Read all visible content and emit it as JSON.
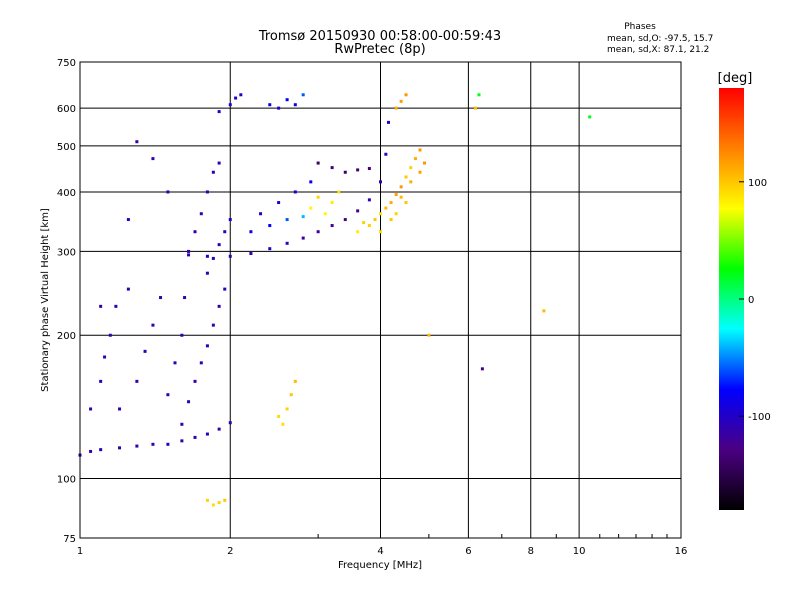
{
  "chart_data": {
    "type": "scatter",
    "title_line1": "Tromsø 20150930 00:58:00-00:59:43",
    "title_line2": "RwPretec (8p)",
    "stats": {
      "heading": "Phases",
      "line_o": "mean, sd,O: -97.5, 15.7",
      "line_x": "mean, sd,X: 87.1, 21.2"
    },
    "xlabel": "Frequency [MHz]",
    "ylabel": "Stationary phase Virtual Height [km]",
    "x_scale": "log",
    "y_scale": "log",
    "xlim": [
      1,
      16
    ],
    "ylim": [
      75,
      750
    ],
    "x_ticks": [
      1,
      2,
      4,
      6,
      8,
      10,
      16
    ],
    "y_ticks": [
      75,
      100,
      200,
      300,
      400,
      500,
      600,
      750
    ],
    "grid": true,
    "colorbar": {
      "label": "[deg]",
      "range": [
        -180,
        180
      ],
      "ticks": [
        100,
        0,
        -100
      ],
      "colormap": [
        "#000000",
        "#4b0082",
        "#0000ff",
        "#00ffff",
        "#00ff00",
        "#ffff00",
        "#ff8000",
        "#ff0000"
      ]
    },
    "series": [
      {
        "points": [
          [
            1.0,
            112
          ],
          [
            1.05,
            114
          ],
          [
            1.1,
            115
          ],
          [
            1.2,
            116
          ],
          [
            1.3,
            117
          ],
          [
            1.4,
            118
          ],
          [
            1.5,
            118
          ],
          [
            1.6,
            120
          ],
          [
            1.7,
            122
          ],
          [
            1.8,
            124
          ],
          [
            1.9,
            127
          ],
          [
            2.0,
            131
          ],
          [
            1.05,
            140
          ],
          [
            1.1,
            160
          ],
          [
            1.12,
            180
          ],
          [
            1.15,
            200
          ],
          [
            1.18,
            230
          ],
          [
            1.25,
            250
          ],
          [
            1.2,
            140
          ],
          [
            1.3,
            160
          ],
          [
            1.35,
            185
          ],
          [
            1.4,
            210
          ],
          [
            1.45,
            240
          ],
          [
            1.5,
            150
          ],
          [
            1.55,
            175
          ],
          [
            1.6,
            200
          ],
          [
            1.62,
            240
          ],
          [
            1.65,
            300
          ],
          [
            1.7,
            330
          ],
          [
            1.75,
            360
          ],
          [
            1.8,
            400
          ],
          [
            1.85,
            440
          ],
          [
            1.9,
            460
          ],
          [
            1.6,
            130
          ],
          [
            1.65,
            145
          ],
          [
            1.7,
            160
          ],
          [
            1.75,
            175
          ],
          [
            1.8,
            190
          ],
          [
            1.85,
            210
          ],
          [
            1.9,
            230
          ],
          [
            1.95,
            250
          ],
          [
            1.8,
            270
          ],
          [
            1.85,
            290
          ],
          [
            1.9,
            310
          ],
          [
            1.95,
            330
          ],
          [
            2.0,
            350
          ],
          [
            1.9,
            590
          ],
          [
            2.0,
            610
          ],
          [
            2.05,
            630
          ],
          [
            2.1,
            640
          ],
          [
            1.65,
            295
          ],
          [
            1.8,
            293
          ],
          [
            2.0,
            293
          ],
          [
            2.2,
            297
          ],
          [
            2.4,
            304
          ],
          [
            2.6,
            312
          ],
          [
            2.8,
            320
          ],
          [
            3.0,
            330
          ],
          [
            3.2,
            340
          ],
          [
            3.4,
            350
          ],
          [
            3.6,
            365
          ],
          [
            3.8,
            385
          ],
          [
            4.0,
            420
          ],
          [
            4.1,
            480
          ],
          [
            4.15,
            560
          ],
          [
            2.2,
            330
          ],
          [
            2.4,
            340
          ],
          [
            2.6,
            350
          ],
          [
            2.8,
            355
          ],
          [
            2.3,
            360
          ],
          [
            2.5,
            380
          ],
          [
            2.7,
            400
          ],
          [
            2.9,
            420
          ],
          [
            3.2,
            450
          ],
          [
            3.4,
            440
          ],
          [
            3.6,
            445
          ],
          [
            3.8,
            448
          ],
          [
            3.0,
            460
          ],
          [
            2.4,
            610
          ],
          [
            2.6,
            625
          ],
          [
            2.8,
            640
          ],
          [
            2.5,
            600
          ],
          [
            2.7,
            610
          ],
          [
            1.4,
            470
          ],
          [
            1.5,
            400
          ],
          [
            1.3,
            510
          ],
          [
            1.25,
            350
          ],
          [
            1.1,
            230
          ],
          [
            6.4,
            170
          ]
        ],
        "phases_deg": [
          -110,
          -110,
          -105,
          -110,
          -110,
          -110,
          -105,
          -110,
          -110,
          -105,
          -110,
          -110,
          -110,
          -105,
          -110,
          -110,
          -105,
          -110,
          -110,
          -110,
          -105,
          -110,
          -110,
          -110,
          -105,
          -110,
          -110,
          -105,
          -110,
          -110,
          -105,
          -110,
          -110,
          -110,
          -105,
          -110,
          -110,
          -105,
          -110,
          -110,
          -105,
          -110,
          -105,
          -110,
          -110,
          -105,
          -100,
          -105,
          -100,
          -100,
          -110,
          -105,
          -110,
          -110,
          -105,
          -110,
          -115,
          -120,
          -125,
          -130,
          -120,
          -110,
          -110,
          -105,
          -100,
          -90,
          -80,
          -60,
          -40,
          -100,
          -95,
          -90,
          -85,
          -135,
          -140,
          -135,
          -130,
          -140,
          -90,
          -80,
          -60,
          -100,
          -95,
          -110,
          -110,
          -110,
          -105,
          -110,
          -130
        ]
      },
      {
        "points": [
          [
            3.8,
            340
          ],
          [
            3.9,
            350
          ],
          [
            4.0,
            360
          ],
          [
            4.1,
            370
          ],
          [
            4.2,
            380
          ],
          [
            4.3,
            395
          ],
          [
            4.4,
            410
          ],
          [
            4.5,
            430
          ],
          [
            4.6,
            450
          ],
          [
            4.7,
            470
          ],
          [
            4.8,
            490
          ],
          [
            3.6,
            330
          ],
          [
            3.7,
            345
          ],
          [
            4.0,
            330
          ],
          [
            4.2,
            350
          ],
          [
            4.4,
            390
          ],
          [
            4.6,
            420
          ],
          [
            4.8,
            440
          ],
          [
            4.9,
            460
          ],
          [
            4.5,
            380
          ],
          [
            4.3,
            360
          ],
          [
            3.1,
            360
          ],
          [
            3.2,
            380
          ],
          [
            3.3,
            400
          ],
          [
            3.0,
            390
          ],
          [
            2.9,
            370
          ],
          [
            4.3,
            600
          ],
          [
            4.5,
            640
          ],
          [
            4.4,
            620
          ],
          [
            2.5,
            135
          ],
          [
            2.6,
            140
          ],
          [
            2.65,
            150
          ],
          [
            2.7,
            160
          ],
          [
            2.55,
            130
          ],
          [
            1.85,
            88
          ],
          [
            1.9,
            89
          ],
          [
            1.95,
            90
          ],
          [
            1.8,
            90
          ],
          [
            6.3,
            640
          ],
          [
            6.2,
            600
          ],
          [
            10.5,
            575
          ],
          [
            5.0,
            200
          ],
          [
            8.5,
            225
          ]
        ],
        "phases_deg": [
          95,
          100,
          90,
          105,
          110,
          115,
          120,
          100,
          95,
          110,
          120,
          85,
          95,
          90,
          100,
          105,
          110,
          115,
          120,
          100,
          95,
          80,
          85,
          90,
          95,
          80,
          110,
          120,
          115,
          90,
          95,
          100,
          105,
          90,
          90,
          95,
          100,
          95,
          20,
          105,
          20,
          105,
          105
        ]
      }
    ]
  }
}
